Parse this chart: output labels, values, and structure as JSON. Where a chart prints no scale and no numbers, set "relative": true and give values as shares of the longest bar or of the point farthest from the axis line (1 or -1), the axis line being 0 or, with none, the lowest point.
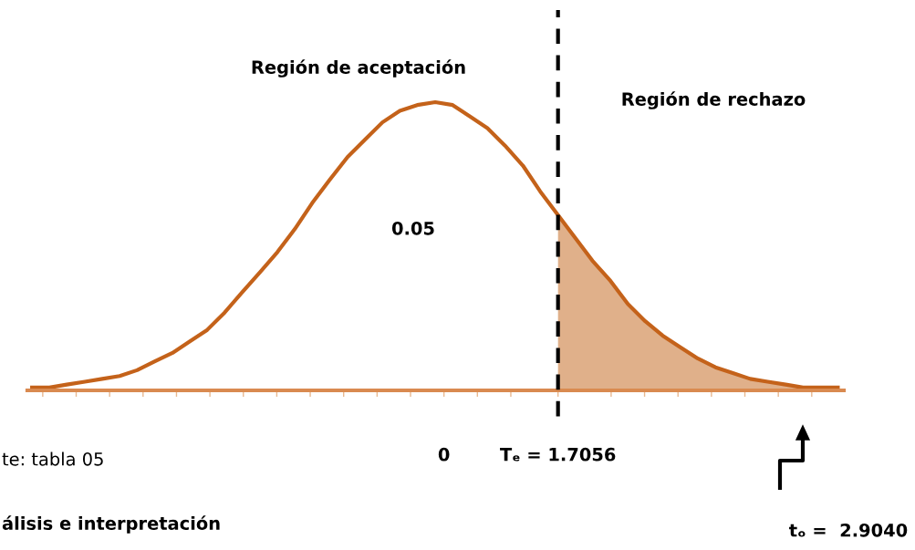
{
  "chart_data": {
    "type": "line",
    "relative": true,
    "x": [
      -6.16,
      -5.9,
      -5.64,
      -5.37,
      -5.11,
      -4.85,
      -4.59,
      -4.33,
      -4.06,
      -3.8,
      -3.54,
      -3.28,
      -3.02,
      -2.75,
      -2.49,
      -2.23,
      -1.97,
      -1.71,
      -1.44,
      -1.18,
      -0.92,
      -0.66,
      -0.4,
      -0.13,
      0.13,
      0.39,
      0.65,
      0.91,
      1.18,
      1.44,
      1.7,
      1.96,
      2.22,
      2.49,
      2.75,
      3.01,
      3.27,
      3.53,
      3.8,
      4.06,
      4.32,
      4.58,
      4.84,
      5.11,
      5.37,
      5.63,
      5.89
    ],
    "series": [
      {
        "color": "#c4621a",
        "values": [
          0.01,
          0.01,
          0.02,
          0.03,
          0.04,
          0.05,
          0.07,
          0.1,
          0.13,
          0.17,
          0.21,
          0.27,
          0.34,
          0.41,
          0.48,
          0.56,
          0.65,
          0.73,
          0.81,
          0.87,
          0.93,
          0.97,
          0.99,
          1.0,
          0.99,
          0.95,
          0.91,
          0.85,
          0.78,
          0.69,
          0.61,
          0.53,
          0.45,
          0.38,
          0.3,
          0.24,
          0.19,
          0.15,
          0.11,
          0.08,
          0.06,
          0.04,
          0.03,
          0.02,
          0.01,
          0.01,
          0.01
        ]
      },
      {
        "type": "area",
        "color": "#e0b08a",
        "x": [
          1.7056,
          1.96,
          2.22,
          2.49,
          2.75,
          3.01,
          3.27,
          3.53,
          3.8,
          4.06,
          4.32,
          4.58,
          4.84,
          5.11,
          5.37,
          5.63,
          5.89
        ],
        "values": [
          0.61,
          0.53,
          0.45,
          0.38,
          0.3,
          0.24,
          0.19,
          0.15,
          0.11,
          0.08,
          0.06,
          0.04,
          0.03,
          0.02,
          0.01,
          0.01,
          0.01
        ]
      }
    ],
    "xlim": [
      -6.23,
      5.98
    ],
    "xticks": [
      {
        "value": -6,
        "label": null
      },
      {
        "value": -5.5,
        "label": null
      },
      {
        "value": -5,
        "label": null
      },
      {
        "value": -4.5,
        "label": null
      },
      {
        "value": -4,
        "label": null
      },
      {
        "value": -3.5,
        "label": null
      },
      {
        "value": -3,
        "label": null
      },
      {
        "value": -2.5,
        "label": null
      },
      {
        "value": -2,
        "label": null
      },
      {
        "value": -1.5,
        "label": null
      },
      {
        "value": -1,
        "label": null
      },
      {
        "value": -0.5,
        "label": null
      },
      {
        "value": 0,
        "label": "0"
      },
      {
        "value": 0.5,
        "label": null
      },
      {
        "value": 1,
        "label": null
      },
      {
        "value": 1.7056,
        "label": "Tₑ = 1.7056"
      },
      {
        "value": 2.5,
        "label": null
      },
      {
        "value": 3,
        "label": null
      },
      {
        "value": 3.5,
        "label": null
      },
      {
        "value": 4,
        "label": null
      },
      {
        "value": 4.5,
        "label": null
      },
      {
        "value": 5,
        "label": null
      },
      {
        "value": 5.5,
        "label": null
      }
    ],
    "tick_labels": "x",
    "grid": false,
    "legend": false,
    "ref_lines": [
      {
        "axis": "x",
        "value": 1.7056,
        "color": "#000000",
        "line_style": "dashed"
      }
    ],
    "annotations": [
      "Región de aceptación",
      "Región de rechazo",
      "0.05",
      "tₒ =  2.9040",
      "te: tabla 05",
      "álisis e interpretación"
    ]
  }
}
